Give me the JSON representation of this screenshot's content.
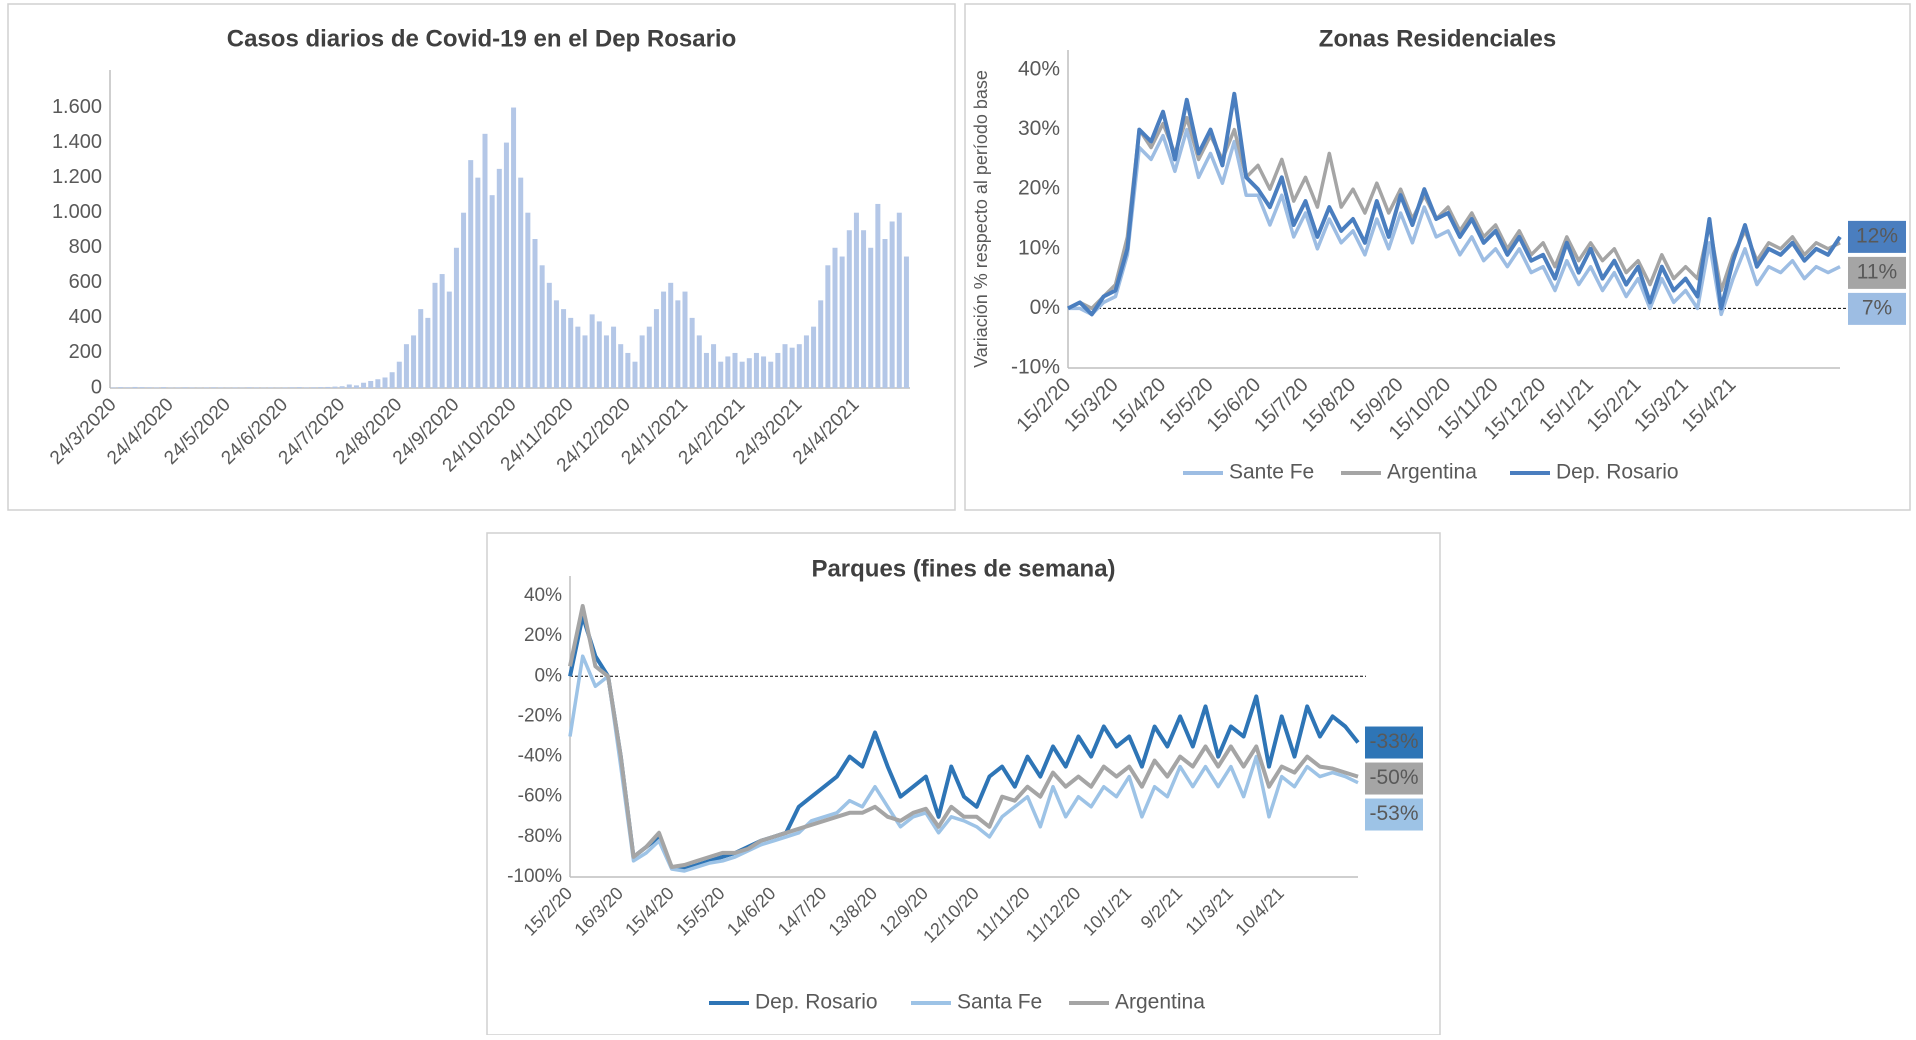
{
  "chart_data": [
    {
      "type": "bar",
      "title": "Casos diarios de Covid-19 en el Dep Rosario",
      "color": "#b4c7e7",
      "categories": [
        "24/3/2020",
        null,
        null,
        null,
        null,
        null,
        null,
        null,
        "24/4/2020",
        null,
        null,
        null,
        null,
        null,
        null,
        null,
        "24/5/2020",
        null,
        null,
        null,
        null,
        null,
        null,
        null,
        "24/6/2020",
        null,
        null,
        null,
        null,
        null,
        null,
        null,
        "24/7/2020",
        null,
        null,
        null,
        null,
        null,
        null,
        null,
        "24/8/2020",
        null,
        null,
        null,
        null,
        null,
        null,
        null,
        "24/9/2020",
        null,
        null,
        null,
        null,
        null,
        null,
        null,
        "24/10/2020",
        null,
        null,
        null,
        null,
        null,
        null,
        null,
        "24/11/2020",
        null,
        null,
        null,
        null,
        null,
        null,
        null,
        "24/12/2020",
        null,
        null,
        null,
        null,
        null,
        null,
        null,
        "24/1/2021",
        null,
        null,
        null,
        null,
        null,
        null,
        null,
        "24/2/2021",
        null,
        null,
        null,
        null,
        null,
        null,
        null,
        "24/3/2021",
        null,
        null,
        null,
        null,
        null,
        null,
        null,
        "24/4/2021",
        null,
        null,
        null,
        null,
        null,
        null,
        null
      ],
      "values": [
        3,
        5,
        4,
        6,
        5,
        4,
        3,
        5,
        2,
        3,
        4,
        3,
        2,
        3,
        4,
        3,
        2,
        3,
        2,
        4,
        3,
        2,
        3,
        2,
        3,
        4,
        5,
        3,
        4,
        5,
        6,
        8,
        10,
        20,
        15,
        30,
        40,
        50,
        60,
        90,
        150,
        250,
        300,
        450,
        400,
        600,
        650,
        550,
        800,
        1000,
        1300,
        1200,
        1450,
        1100,
        1250,
        1400,
        1600,
        1200,
        1000,
        850,
        700,
        600,
        500,
        450,
        400,
        350,
        300,
        420,
        380,
        300,
        350,
        250,
        200,
        150,
        300,
        350,
        450,
        550,
        600,
        500,
        550,
        400,
        300,
        200,
        250,
        150,
        180,
        200,
        150,
        170,
        200,
        180,
        150,
        200,
        250,
        230,
        250,
        300,
        350,
        500,
        700,
        800,
        750,
        900,
        1000,
        900,
        800,
        1050,
        850,
        950,
        1000,
        750
      ],
      "ylim": [
        0,
        1700
      ],
      "yticks": [
        0,
        200,
        400,
        600,
        800,
        {
          "value": 1000,
          "label": "1.000"
        },
        {
          "value": 1200,
          "label": "1.200"
        },
        {
          "value": 1400,
          "label": "1.400"
        },
        {
          "value": 1600,
          "label": "1.600"
        }
      ],
      "grid": false
    },
    {
      "type": "line",
      "title": "Zonas Residenciales",
      "y_label": "Variación % respecto al período base",
      "categories": [
        "15/2/20",
        null,
        null,
        null,
        "15/3/20",
        null,
        null,
        null,
        "15/4/20",
        null,
        null,
        null,
        "15/5/20",
        null,
        null,
        null,
        "15/6/20",
        null,
        null,
        null,
        "15/7/20",
        null,
        null,
        null,
        "15/8/20",
        null,
        null,
        null,
        "15/9/20",
        null,
        null,
        null,
        "15/10/20",
        null,
        null,
        null,
        "15/11/20",
        null,
        null,
        null,
        "15/12/20",
        null,
        null,
        null,
        "15/1/21",
        null,
        null,
        null,
        "15/2/21",
        null,
        null,
        null,
        "15/3/21",
        null,
        null,
        null,
        "15/4/21",
        null,
        null,
        null,
        null,
        null,
        null,
        null,
        null,
        null
      ],
      "series": [
        {
          "name": "Sante Fe",
          "color": "#9dbde3",
          "end_label": "7%",
          "values": [
            0,
            0,
            -1,
            1,
            2,
            9,
            27,
            25,
            29,
            23,
            30,
            22,
            26,
            21,
            28,
            19,
            19,
            14,
            19,
            12,
            16,
            10,
            15,
            11,
            13,
            9,
            15,
            10,
            16,
            11,
            17,
            12,
            13,
            9,
            12,
            8,
            10,
            7,
            10,
            6,
            7,
            3,
            8,
            4,
            7,
            3,
            6,
            2,
            5,
            0,
            5,
            1,
            3,
            0,
            11,
            -1,
            5,
            10,
            4,
            7,
            6,
            8,
            5,
            7,
            6,
            7
          ]
        },
        {
          "name": "Argentina",
          "color": "#a5a5a5",
          "end_label": "11%",
          "values": [
            0,
            1,
            0,
            2,
            4,
            12,
            30,
            27,
            31,
            26,
            32,
            25,
            29,
            25,
            30,
            22,
            24,
            20,
            25,
            18,
            22,
            17,
            26,
            17,
            20,
            16,
            21,
            16,
            20,
            15,
            19,
            15,
            17,
            13,
            16,
            12,
            14,
            10,
            13,
            9,
            11,
            7,
            12,
            8,
            11,
            8,
            10,
            6,
            8,
            4,
            9,
            5,
            7,
            5,
            14,
            3,
            9,
            13,
            8,
            11,
            10,
            12,
            9,
            11,
            10,
            11
          ]
        },
        {
          "name": "Dep. Rosario",
          "color": "#4a7ebf",
          "end_label": "12%",
          "values": [
            0,
            1,
            -1,
            2,
            3,
            10,
            30,
            28,
            33,
            25,
            35,
            26,
            30,
            24,
            36,
            22,
            20,
            17,
            22,
            14,
            18,
            12,
            17,
            13,
            15,
            11,
            18,
            12,
            19,
            14,
            20,
            15,
            16,
            12,
            15,
            11,
            13,
            9,
            12,
            8,
            9,
            5,
            11,
            6,
            10,
            5,
            8,
            4,
            7,
            1,
            7,
            3,
            5,
            2,
            15,
            0,
            8,
            14,
            7,
            10,
            9,
            11,
            8,
            10,
            9,
            12
          ]
        }
      ],
      "ylim": [
        -10,
        40
      ],
      "yticks": [
        {
          "value": -10,
          "label": "-10%"
        },
        {
          "value": 0,
          "label": "0%"
        },
        {
          "value": 10,
          "label": "10%"
        },
        {
          "value": 20,
          "label": "20%"
        },
        {
          "value": 30,
          "label": "30%"
        },
        {
          "value": 40,
          "label": "40%"
        }
      ],
      "zero_line": true,
      "grid": false,
      "legend": "bottom"
    },
    {
      "type": "line",
      "title": "Parques (fines de semana)",
      "categories": [
        "15/2/20",
        null,
        null,
        null,
        "16/3/20",
        null,
        null,
        null,
        "15/4/20",
        null,
        null,
        null,
        "15/5/20",
        null,
        null,
        null,
        "14/6/20",
        null,
        null,
        null,
        "14/7/20",
        null,
        null,
        null,
        "13/8/20",
        null,
        null,
        null,
        "12/9/20",
        null,
        null,
        null,
        "12/10/20",
        null,
        null,
        null,
        "11/11/20",
        null,
        null,
        null,
        "11/12/20",
        null,
        null,
        null,
        "10/1/21",
        null,
        null,
        null,
        "9/2/21",
        null,
        null,
        null,
        "11/3/21",
        null,
        null,
        null,
        "10/4/21",
        null,
        null,
        null,
        null,
        null,
        null
      ],
      "series": [
        {
          "name": "Dep. Rosario",
          "color": "#2e75b6",
          "end_label": "-33%",
          "values": [
            0,
            30,
            10,
            0,
            -40,
            -90,
            -85,
            -80,
            -95,
            -96,
            -94,
            -92,
            -90,
            -88,
            -85,
            -82,
            -80,
            -78,
            -65,
            -60,
            -55,
            -50,
            -40,
            -45,
            -28,
            -45,
            -60,
            -55,
            -50,
            -70,
            -45,
            -60,
            -65,
            -50,
            -45,
            -55,
            -40,
            -50,
            -35,
            -45,
            -30,
            -40,
            -25,
            -35,
            -30,
            -45,
            -25,
            -35,
            -20,
            -35,
            -15,
            -40,
            -25,
            -30,
            -10,
            -45,
            -20,
            -40,
            -15,
            -30,
            -20,
            -25,
            -33
          ]
        },
        {
          "name": "Santa Fe",
          "color": "#9dc3e6",
          "end_label": "-53%",
          "values": [
            -30,
            10,
            -5,
            0,
            -45,
            -92,
            -88,
            -82,
            -96,
            -97,
            -95,
            -93,
            -92,
            -90,
            -87,
            -84,
            -82,
            -80,
            -78,
            -72,
            -70,
            -68,
            -62,
            -65,
            -55,
            -65,
            -75,
            -70,
            -68,
            -78,
            -70,
            -72,
            -75,
            -80,
            -70,
            -65,
            -60,
            -75,
            -55,
            -70,
            -60,
            -65,
            -55,
            -60,
            -50,
            -70,
            -55,
            -60,
            -45,
            -55,
            -45,
            -55,
            -45,
            -60,
            -40,
            -70,
            -50,
            -55,
            -45,
            -50,
            -48,
            -50,
            -53
          ]
        },
        {
          "name": "Argentina",
          "color": "#a5a5a5",
          "end_label": "-50%",
          "values": [
            5,
            35,
            5,
            0,
            -40,
            -90,
            -85,
            -78,
            -95,
            -94,
            -92,
            -90,
            -88,
            -88,
            -86,
            -82,
            -80,
            -78,
            -76,
            -74,
            -72,
            -70,
            -68,
            -68,
            -65,
            -70,
            -72,
            -68,
            -66,
            -75,
            -65,
            -70,
            -70,
            -75,
            -60,
            -62,
            -55,
            -60,
            -48,
            -55,
            -50,
            -55,
            -45,
            -50,
            -45,
            -55,
            -42,
            -50,
            -40,
            -45,
            -35,
            -45,
            -35,
            -45,
            -35,
            -55,
            -45,
            -48,
            -40,
            -45,
            -46,
            -48,
            -50
          ]
        }
      ],
      "ylim": [
        -100,
        40
      ],
      "yticks": [
        {
          "value": -100,
          "label": "-100%"
        },
        {
          "value": -80,
          "label": "-80%"
        },
        {
          "value": -60,
          "label": "-60%"
        },
        {
          "value": -40,
          "label": "-40%"
        },
        {
          "value": -20,
          "label": "-20%"
        },
        {
          "value": 0,
          "label": "0%"
        },
        {
          "value": 20,
          "label": "20%"
        },
        {
          "value": 40,
          "label": "40%"
        }
      ],
      "zero_line": true,
      "grid": false,
      "legend": "bottom"
    }
  ]
}
